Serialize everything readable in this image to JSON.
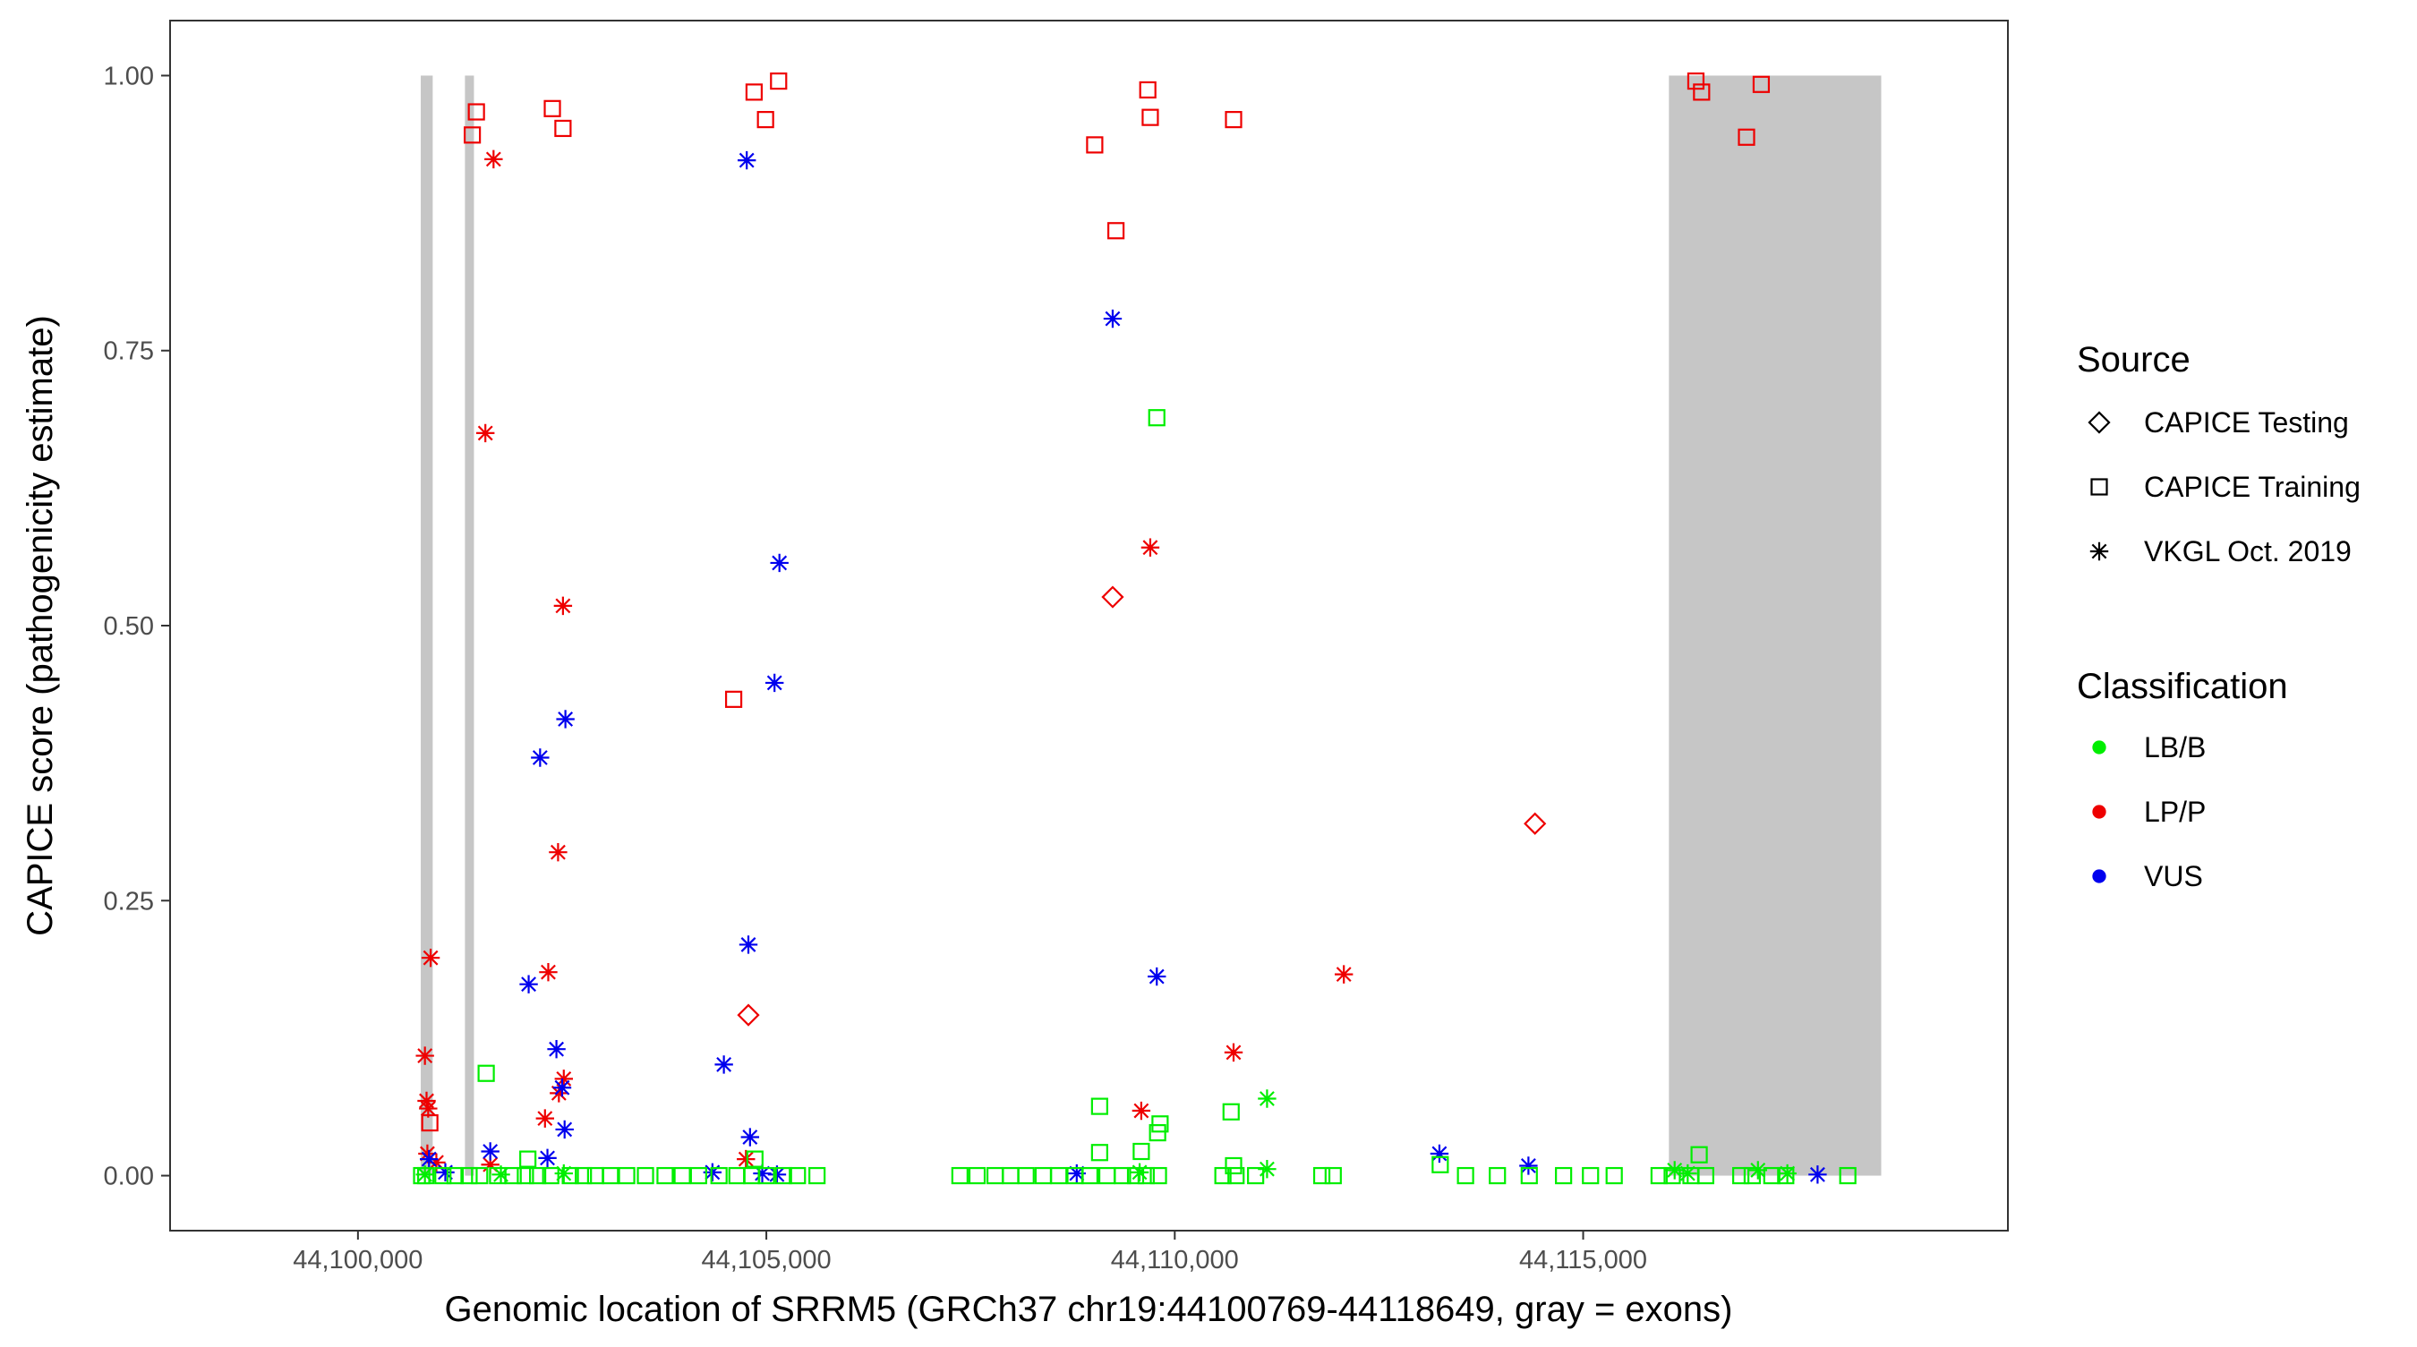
{
  "chart_data": {
    "type": "scatter",
    "xlabel": "Genomic location of SRRM5 (GRCh37 chr19:44100769-44118649, gray = exons)",
    "ylabel": "CAPICE score (pathogenicity estimate)",
    "xlim": [
      44097700,
      44120200
    ],
    "ylim": [
      -0.05,
      1.05
    ],
    "x_ticks": [
      44100000,
      44105000,
      44110000,
      44115000
    ],
    "x_tick_labels": [
      "44,100,000",
      "44,105,000",
      "44,110,000",
      "44,115,000"
    ],
    "y_ticks": [
      0,
      0.25,
      0.5,
      0.75,
      1.0
    ],
    "y_tick_labels": [
      "0.00",
      "0.25",
      "0.50",
      "0.75",
      "1.00"
    ],
    "grid": false,
    "exon_color": "#c6c6c6",
    "exons": [
      {
        "start": 44100769,
        "end": 44100915
      },
      {
        "start": 44101310,
        "end": 44101420
      },
      {
        "start": 44116050,
        "end": 44118649
      }
    ],
    "legend": {
      "position": "right",
      "source_title": "Source",
      "source_entries": [
        {
          "label": "CAPICE Testing",
          "shape": "diamond"
        },
        {
          "label": "CAPICE Training",
          "shape": "square"
        },
        {
          "label": "VKGL Oct. 2019",
          "shape": "star"
        }
      ],
      "class_title": "Classification",
      "class_entries": [
        {
          "label": "LB/B",
          "color": "#00ee00"
        },
        {
          "label": "LP/P",
          "color": "#ee0000"
        },
        {
          "label": "VUS",
          "color": "#0000ee"
        }
      ]
    },
    "series": [
      {
        "source": "CAPICE Training",
        "classification": "LP/P",
        "shape": "square",
        "color": "#ee0000",
        "points": [
          [
            44101450,
            0.967
          ],
          [
            44101400,
            0.946
          ],
          [
            44102380,
            0.97
          ],
          [
            44102510,
            0.952
          ],
          [
            44104850,
            0.985
          ],
          [
            44104990,
            0.96
          ],
          [
            44105150,
            0.995
          ],
          [
            44104600,
            0.433
          ],
          [
            44109020,
            0.937
          ],
          [
            44109670,
            0.987
          ],
          [
            44109700,
            0.962
          ],
          [
            44109280,
            0.859
          ],
          [
            44110720,
            0.96
          ],
          [
            44116380,
            0.995
          ],
          [
            44116450,
            0.985
          ],
          [
            44117000,
            0.944
          ],
          [
            44117180,
            0.992
          ],
          [
            44100880,
            0.048
          ]
        ]
      },
      {
        "source": "VKGL Oct. 2019",
        "classification": "LP/P",
        "shape": "star",
        "color": "#ee0000",
        "points": [
          [
            44101660,
            0.924
          ],
          [
            44101560,
            0.675
          ],
          [
            44102510,
            0.518
          ],
          [
            44102450,
            0.294
          ],
          [
            44102330,
            0.185
          ],
          [
            44102460,
            0.075
          ],
          [
            44102520,
            0.088
          ],
          [
            44102290,
            0.052
          ],
          [
            44100890,
            0.198
          ],
          [
            44100820,
            0.109
          ],
          [
            44100840,
            0.068
          ],
          [
            44100860,
            0.061
          ],
          [
            44100850,
            0.02
          ],
          [
            44100960,
            0.012
          ],
          [
            44101620,
            0.01
          ],
          [
            44104750,
            0.015
          ],
          [
            44109700,
            0.571
          ],
          [
            44109590,
            0.059
          ],
          [
            44110720,
            0.112
          ],
          [
            44112070,
            0.183
          ]
        ]
      },
      {
        "source": "CAPICE Testing",
        "classification": "LP/P",
        "shape": "diamond",
        "color": "#ee0000",
        "points": [
          [
            44109240,
            0.526
          ],
          [
            44104780,
            0.146
          ],
          [
            44114410,
            0.32
          ]
        ]
      },
      {
        "source": "VKGL Oct. 2019",
        "classification": "VUS",
        "shape": "star",
        "color": "#0000ee",
        "points": [
          [
            44104760,
            0.923
          ],
          [
            44105160,
            0.557
          ],
          [
            44105100,
            0.448
          ],
          [
            44102540,
            0.415
          ],
          [
            44102230,
            0.38
          ],
          [
            44104780,
            0.21
          ],
          [
            44102090,
            0.174
          ],
          [
            44102430,
            0.115
          ],
          [
            44104480,
            0.101
          ],
          [
            44102500,
            0.08
          ],
          [
            44102530,
            0.042
          ],
          [
            44104800,
            0.035
          ],
          [
            44101620,
            0.022
          ],
          [
            44102320,
            0.016
          ],
          [
            44100870,
            0.015
          ],
          [
            44101070,
            0.003
          ],
          [
            44104340,
            0.003
          ],
          [
            44104950,
            0.002
          ],
          [
            44105130,
            0.001
          ],
          [
            44109240,
            0.779
          ],
          [
            44109780,
            0.181
          ],
          [
            44108800,
            0.002
          ],
          [
            44113240,
            0.02
          ],
          [
            44114330,
            0.009
          ],
          [
            44117870,
            0.001
          ]
        ]
      },
      {
        "source": "CAPICE Training",
        "classification": "LB/B",
        "shape": "square",
        "color": "#00ee00",
        "points": [
          [
            44101570,
            0.093
          ],
          [
            44109780,
            0.689
          ],
          [
            44109080,
            0.063
          ],
          [
            44109820,
            0.047
          ],
          [
            44109790,
            0.039
          ],
          [
            44110690,
            0.058
          ],
          [
            44102080,
            0.015
          ],
          [
            44104860,
            0.015
          ],
          [
            44109080,
            0.021
          ],
          [
            44109590,
            0.022
          ],
          [
            44116420,
            0.019
          ],
          [
            44113250,
            0.01
          ],
          [
            44110720,
            0.009
          ],
          [
            44100780,
            0.0
          ],
          [
            44100830,
            0.0
          ],
          [
            44101040,
            0.0
          ],
          [
            44101190,
            0.0
          ],
          [
            44101360,
            0.0
          ],
          [
            44101490,
            0.0
          ],
          [
            44101710,
            0.0
          ],
          [
            44101900,
            0.0
          ],
          [
            44102050,
            0.0
          ],
          [
            44102200,
            0.0
          ],
          [
            44102360,
            0.0
          ],
          [
            44102600,
            0.0
          ],
          [
            44102760,
            0.0
          ],
          [
            44102910,
            0.0
          ],
          [
            44103090,
            0.0
          ],
          [
            44103290,
            0.0
          ],
          [
            44103520,
            0.0
          ],
          [
            44103760,
            0.0
          ],
          [
            44103970,
            0.0
          ],
          [
            44104170,
            0.0
          ],
          [
            44104420,
            0.0
          ],
          [
            44104640,
            0.0
          ],
          [
            44104820,
            0.0
          ],
          [
            44105000,
            0.0
          ],
          [
            44105210,
            0.0
          ],
          [
            44105380,
            0.0
          ],
          [
            44105620,
            0.0
          ],
          [
            44107370,
            0.0
          ],
          [
            44107580,
            0.0
          ],
          [
            44107800,
            0.0
          ],
          [
            44107990,
            0.0
          ],
          [
            44108180,
            0.0
          ],
          [
            44108390,
            0.0
          ],
          [
            44108580,
            0.0
          ],
          [
            44108780,
            0.0
          ],
          [
            44108960,
            0.0
          ],
          [
            44109170,
            0.0
          ],
          [
            44109360,
            0.0
          ],
          [
            44109520,
            0.0
          ],
          [
            44109650,
            0.0
          ],
          [
            44109800,
            0.0
          ],
          [
            44110590,
            0.0
          ],
          [
            44110750,
            0.0
          ],
          [
            44110990,
            0.0
          ],
          [
            44111800,
            0.0
          ],
          [
            44111940,
            0.0
          ],
          [
            44113560,
            0.0
          ],
          [
            44113950,
            0.0
          ],
          [
            44114340,
            0.0
          ],
          [
            44114760,
            0.0
          ],
          [
            44115090,
            0.0
          ],
          [
            44115380,
            0.0
          ],
          [
            44115930,
            0.0
          ],
          [
            44116090,
            0.0
          ],
          [
            44116320,
            0.0
          ],
          [
            44116500,
            0.0
          ],
          [
            44116930,
            0.0
          ],
          [
            44117070,
            0.0
          ],
          [
            44117310,
            0.0
          ],
          [
            44117480,
            0.0
          ],
          [
            44118240,
            0.0
          ]
        ]
      },
      {
        "source": "VKGL Oct. 2019",
        "classification": "LB/B",
        "shape": "star",
        "color": "#00ee00",
        "points": [
          [
            44111130,
            0.07
          ],
          [
            44111130,
            0.006
          ],
          [
            44116120,
            0.005
          ],
          [
            44117140,
            0.005
          ],
          [
            44100820,
            0.001
          ],
          [
            44101750,
            0.001
          ],
          [
            44102520,
            0.002
          ],
          [
            44109570,
            0.003
          ],
          [
            44116280,
            0.002
          ],
          [
            44117500,
            0.002
          ]
        ]
      }
    ]
  }
}
